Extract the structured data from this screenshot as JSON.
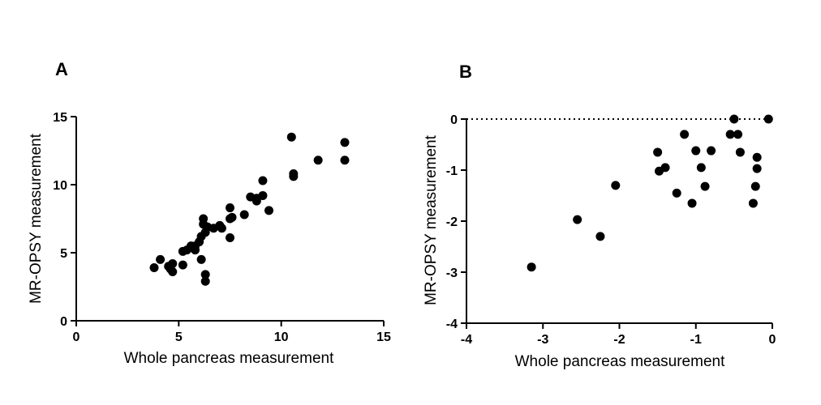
{
  "figure": {
    "panels": [
      {
        "letter": "A"
      },
      {
        "letter": "B"
      }
    ]
  },
  "chart_data": [
    {
      "panel": "A",
      "type": "scatter",
      "title": "",
      "xlabel": "Whole pancreas measurement",
      "ylabel": "MR-OPSY measurement",
      "xlim": [
        0,
        15
      ],
      "ylim": [
        0,
        15
      ],
      "xticks": [
        0,
        5,
        10,
        15
      ],
      "yticks": [
        0,
        5,
        10,
        15
      ],
      "grid": false,
      "series": [
        {
          "name": "measurements",
          "color": "#000000",
          "points": [
            [
              3.8,
              3.9
            ],
            [
              4.1,
              4.5
            ],
            [
              4.5,
              4.0
            ],
            [
              4.6,
              3.8
            ],
            [
              4.7,
              3.6
            ],
            [
              4.7,
              4.2
            ],
            [
              5.2,
              4.1
            ],
            [
              5.2,
              5.1
            ],
            [
              5.4,
              5.2
            ],
            [
              5.6,
              5.5
            ],
            [
              5.8,
              5.5
            ],
            [
              5.8,
              5.2
            ],
            [
              6.0,
              5.8
            ],
            [
              6.1,
              6.2
            ],
            [
              6.1,
              4.5
            ],
            [
              6.2,
              7.5
            ],
            [
              6.2,
              7.1
            ],
            [
              6.3,
              2.9
            ],
            [
              6.3,
              3.4
            ],
            [
              6.3,
              6.5
            ],
            [
              6.4,
              6.9
            ],
            [
              6.7,
              6.8
            ],
            [
              7.0,
              7.0
            ],
            [
              7.1,
              6.8
            ],
            [
              7.5,
              6.1
            ],
            [
              7.5,
              7.5
            ],
            [
              7.5,
              8.3
            ],
            [
              7.6,
              7.6
            ],
            [
              8.2,
              7.8
            ],
            [
              8.5,
              9.1
            ],
            [
              8.8,
              8.8
            ],
            [
              8.8,
              9.0
            ],
            [
              9.1,
              9.2
            ],
            [
              9.1,
              10.3
            ],
            [
              9.4,
              8.1
            ],
            [
              10.5,
              13.5
            ],
            [
              10.6,
              10.6
            ],
            [
              10.6,
              10.8
            ],
            [
              11.8,
              11.8
            ],
            [
              13.1,
              13.1
            ],
            [
              13.1,
              11.8
            ]
          ]
        }
      ]
    },
    {
      "panel": "B",
      "type": "scatter",
      "title": "",
      "xlabel": "Whole pancreas measurement",
      "ylabel": "MR-OPSY measurement",
      "xlim": [
        -4,
        0
      ],
      "ylim": [
        -4,
        0
      ],
      "xticks": [
        -4,
        -3,
        -2,
        -1,
        0
      ],
      "yticks": [
        -4,
        -3,
        -2,
        -1,
        0
      ],
      "grid": false,
      "reference_line": {
        "y": 0,
        "style": "dotted"
      },
      "series": [
        {
          "name": "measurements",
          "color": "#000000",
          "points": [
            [
              -3.15,
              -2.9
            ],
            [
              -2.55,
              -1.97
            ],
            [
              -2.25,
              -2.3
            ],
            [
              -2.05,
              -1.3
            ],
            [
              -1.5,
              -0.65
            ],
            [
              -1.48,
              -1.02
            ],
            [
              -1.4,
              -0.95
            ],
            [
              -1.25,
              -1.45
            ],
            [
              -1.15,
              -0.3
            ],
            [
              -1.05,
              -1.65
            ],
            [
              -1.0,
              -0.62
            ],
            [
              -0.93,
              -0.95
            ],
            [
              -0.88,
              -1.32
            ],
            [
              -0.8,
              -0.62
            ],
            [
              -0.55,
              -0.3
            ],
            [
              -0.5,
              0.0
            ],
            [
              -0.45,
              -0.3
            ],
            [
              -0.42,
              -0.65
            ],
            [
              -0.25,
              -1.65
            ],
            [
              -0.22,
              -1.32
            ],
            [
              -0.2,
              -0.75
            ],
            [
              -0.2,
              -0.97
            ],
            [
              -0.05,
              0.0
            ]
          ]
        }
      ]
    }
  ]
}
